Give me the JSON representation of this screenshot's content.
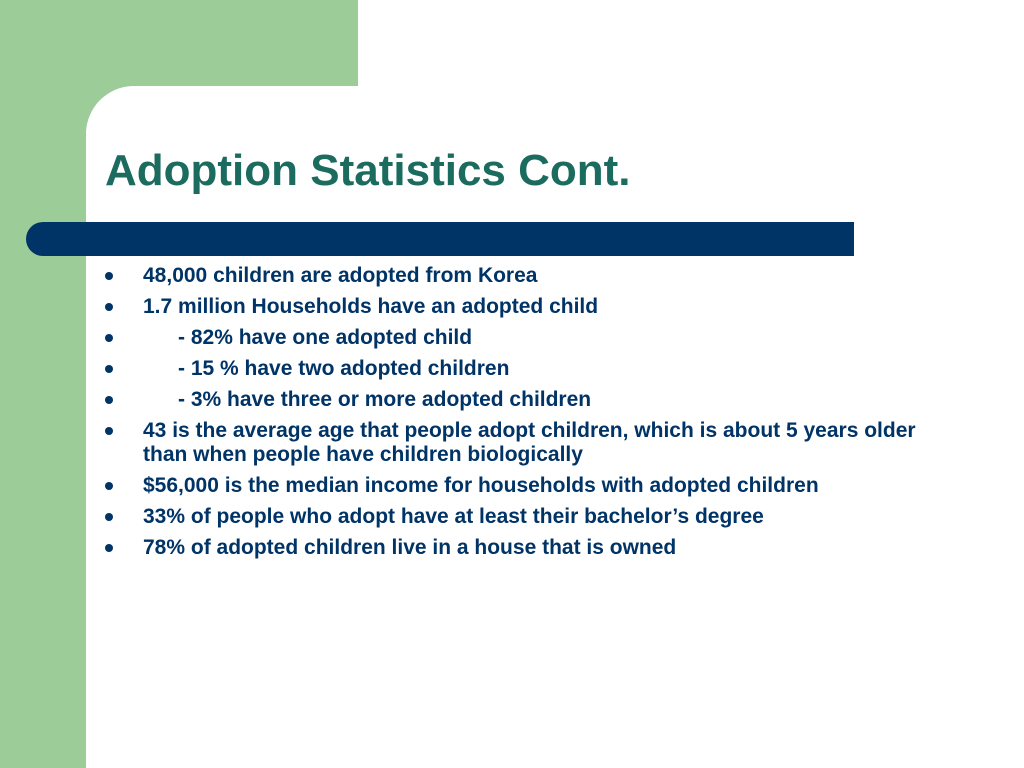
{
  "slide": {
    "title": "Adoption Statistics Cont.",
    "bullets": [
      "48,000 children are adopted from Korea",
      "1.7 million Households have an adopted child",
      "      - 82% have one adopted child",
      "      - 15 % have two adopted children",
      "      - 3% have three or more adopted children",
      "43 is the average age that people adopt children, which is about 5 years older than when people have children biologically",
      "$56,000 is the median income for households with adopted children",
      "33% of people who adopt have at least their bachelor’s degree",
      "78% of adopted children live in a house that is owned"
    ]
  },
  "colors": {
    "green_block": "#9ccc97",
    "title_text": "#1b6b5f",
    "title_bar": "#003366",
    "body_text": "#003366"
  }
}
